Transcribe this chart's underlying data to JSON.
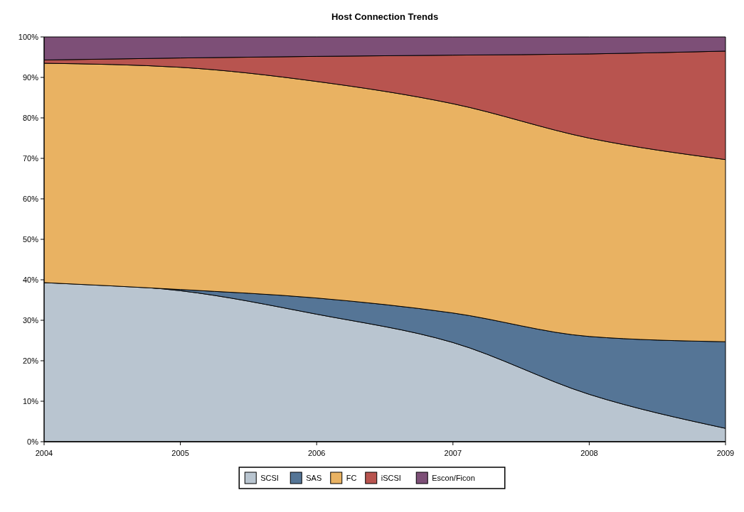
{
  "chart_data": {
    "type": "area",
    "title": "Host Connection Trends",
    "stacked": true,
    "x": [
      2004,
      2005,
      2006,
      2007,
      2008,
      2009
    ],
    "series": [
      {
        "name": "SCSI",
        "color": "#b9c5d0",
        "values": [
          39.3,
          37.3,
          31.5,
          24.5,
          11.7,
          3.3
        ]
      },
      {
        "name": "SAS",
        "color": "#557596",
        "values": [
          0,
          0.3,
          4,
          7.3,
          14.3,
          21.4
        ]
      },
      {
        "name": "FC",
        "color": "#e9b262",
        "values": [
          54.2,
          54.9,
          53.5,
          51.7,
          49,
          45
        ]
      },
      {
        "name": "iSCSI",
        "color": "#b8544f",
        "values": [
          0.8,
          2.3,
          6.2,
          12,
          20.8,
          26.8
        ]
      },
      {
        "name": "Escon/Ficon",
        "color": "#7d4f77",
        "values": [
          5.7,
          5.2,
          4.8,
          4.5,
          4.2,
          3.5
        ]
      }
    ],
    "xlim": [
      2004,
      2009
    ],
    "xticks": [
      2004,
      2005,
      2006,
      2007,
      2008,
      2009
    ],
    "ylim": [
      0,
      100
    ],
    "yticks": [
      {
        "value": 0,
        "label": "0%"
      },
      {
        "value": 10,
        "label": "10%"
      },
      {
        "value": 20,
        "label": "20%"
      },
      {
        "value": 30,
        "label": "30%"
      },
      {
        "value": 40,
        "label": "40%"
      },
      {
        "value": 50,
        "label": "50%"
      },
      {
        "value": 60,
        "label": "60%"
      },
      {
        "value": 70,
        "label": "70%"
      },
      {
        "value": 80,
        "label": "80%"
      },
      {
        "value": 90,
        "label": "90%"
      },
      {
        "value": 100,
        "label": "100%"
      }
    ],
    "grid": false,
    "legend": "bottom"
  }
}
